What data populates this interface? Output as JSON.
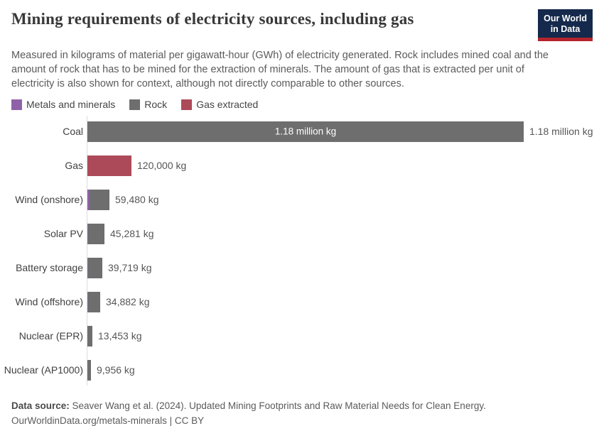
{
  "header": {
    "title": "Mining requirements of electricity sources, including gas",
    "subtitle": "Measured in kilograms of material per gigawatt-hour (GWh) of electricity generated. Rock includes mined coal and the amount of rock that has to be mined for the extraction of minerals. The amount of gas that is extracted per unit of electricity is also shown for context, although not directly comparable to other sources.",
    "logo_line1": "Our World",
    "logo_line2": "in Data"
  },
  "legend": {
    "items": [
      {
        "label": "Metals and minerals",
        "color": "#8f62a8"
      },
      {
        "label": "Rock",
        "color": "#6e6e6e"
      },
      {
        "label": "Gas extracted",
        "color": "#ad4a59"
      }
    ]
  },
  "chart_data": {
    "type": "bar",
    "orientation": "horizontal",
    "title": "Mining requirements of electricity sources, including gas",
    "unit": "kg per GWh",
    "xlim": [
      0,
      1180000
    ],
    "grid": false,
    "legend_position": "top-left",
    "categories": [
      "Coal",
      "Gas",
      "Wind (onshore)",
      "Solar PV",
      "Battery storage",
      "Wind (offshore)",
      "Nuclear (EPR)",
      "Nuclear (AP1000)"
    ],
    "values": [
      1180000,
      120000,
      59480,
      45281,
      39719,
      34882,
      13453,
      9956
    ],
    "value_labels": [
      "1.18 million kg",
      "120,000 kg",
      "59,480 kg",
      "45,281 kg",
      "39,719 kg",
      "34,882 kg",
      "13,453 kg",
      "9,956 kg"
    ],
    "inside_label_index": 0,
    "series": [
      {
        "name": "Metals and minerals",
        "color": "#8f62a8",
        "values": [
          0,
          0,
          5800,
          1900,
          1000,
          1900,
          0,
          0
        ]
      },
      {
        "name": "Rock",
        "color": "#6e6e6e",
        "values": [
          1180000,
          0,
          53680,
          43381,
          38719,
          32982,
          13453,
          9956
        ]
      },
      {
        "name": "Gas extracted",
        "color": "#ad4a59",
        "values": [
          0,
          120000,
          0,
          0,
          0,
          0,
          0,
          0
        ]
      }
    ]
  },
  "colors": {
    "metals": "#8f62a8",
    "rock": "#6e6e6e",
    "gas": "#ad4a59",
    "axis": "#dcdcdc",
    "logo_navy": "#14294b",
    "logo_red": "#b5232d"
  },
  "footer": {
    "data_source_label": "Data source:",
    "data_source_text": " Seaver Wang et al. (2024). Updated Mining Footprints and Raw Material Needs for Clean Energy.",
    "license_line": "OurWorldinData.org/metals-minerals | CC BY"
  }
}
